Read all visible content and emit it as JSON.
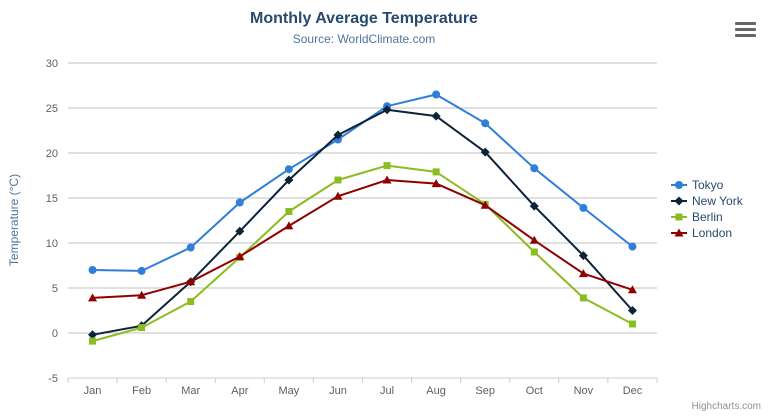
{
  "header": {
    "title": "Monthly Average Temperature",
    "subtitle": "Source: WorldClimate.com"
  },
  "footer": {
    "credits": "Highcharts.com"
  },
  "colors": {
    "title": "#274b6d",
    "subtitle": "#4d759e",
    "axis_label": "#606060",
    "gridline": "#c0c0c0",
    "axis_line": "#c0d0e0",
    "legend_text": "#274b6d",
    "credits": "#909090",
    "context_button": "#666666"
  },
  "chart_data": {
    "type": "line",
    "title": "Monthly Average Temperature",
    "subtitle": "Source: WorldClimate.com",
    "categories": [
      "Jan",
      "Feb",
      "Mar",
      "Apr",
      "May",
      "Jun",
      "Jul",
      "Aug",
      "Sep",
      "Oct",
      "Nov",
      "Dec"
    ],
    "series": [
      {
        "name": "Tokyo",
        "color": "#2f7ed8",
        "marker": "circle",
        "values": [
          7.0,
          6.9,
          9.5,
          14.5,
          18.2,
          21.5,
          25.2,
          26.5,
          23.3,
          18.3,
          13.9,
          9.6
        ]
      },
      {
        "name": "New York",
        "color": "#0d233a",
        "marker": "diamond",
        "values": [
          -0.2,
          0.8,
          5.7,
          11.3,
          17.0,
          22.0,
          24.8,
          24.1,
          20.1,
          14.1,
          8.6,
          2.5
        ]
      },
      {
        "name": "Berlin",
        "color": "#8bbc21",
        "marker": "square",
        "values": [
          -0.9,
          0.6,
          3.5,
          8.4,
          13.5,
          17.0,
          18.6,
          17.9,
          14.3,
          9.0,
          3.9,
          1.0
        ]
      },
      {
        "name": "London",
        "color": "#910000",
        "marker": "triangle",
        "values": [
          3.9,
          4.2,
          5.7,
          8.5,
          11.9,
          15.2,
          17.0,
          16.6,
          14.2,
          10.3,
          6.6,
          4.8
        ]
      }
    ],
    "xlabel": "",
    "ylabel": "Temperature (°C)",
    "ylim": [
      -5,
      30
    ],
    "y_ticks": [
      30,
      25,
      20,
      15,
      10,
      5,
      0,
      -5
    ],
    "grid": true,
    "legend_position": "right"
  }
}
